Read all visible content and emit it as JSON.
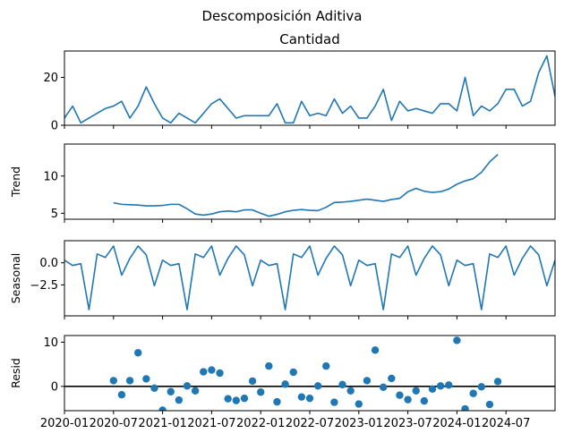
{
  "figure": {
    "suptitle": "Descomposición Aditiva"
  },
  "chart_data": [
    {
      "type": "line",
      "title": "Cantidad",
      "ylabel": "",
      "ylim": [
        0,
        31
      ],
      "yticks": [
        {
          "v": 0,
          "label": "0"
        },
        {
          "v": 20,
          "label": "20"
        }
      ],
      "series": [
        {
          "values": [
            3,
            8,
            1,
            3,
            5,
            7,
            8,
            10,
            3,
            8,
            16,
            9,
            3,
            1,
            5,
            3,
            1,
            5,
            9,
            11,
            7,
            3,
            4,
            4,
            4,
            4,
            9,
            1,
            1,
            10,
            4,
            5,
            4,
            11,
            5,
            8,
            3,
            3,
            8,
            15,
            2,
            10,
            6,
            7,
            6,
            5,
            9,
            9,
            6,
            20,
            4,
            8,
            6,
            9,
            15,
            15,
            8,
            10,
            22,
            29,
            12
          ]
        }
      ]
    },
    {
      "type": "line",
      "title": "",
      "ylabel": "Trend",
      "ylim": [
        4.2,
        14.3
      ],
      "yticks": [
        {
          "v": 5,
          "label": "5"
        },
        {
          "v": 10,
          "label": "10"
        }
      ],
      "series": [
        {
          "start_index": 6,
          "values": [
            6.4,
            6.2,
            6.15,
            6.1,
            6.0,
            6.0,
            6.05,
            6.2,
            6.2,
            5.6,
            4.9,
            4.75,
            4.9,
            5.2,
            5.3,
            5.2,
            5.45,
            5.45,
            5.0,
            4.6,
            4.85,
            5.2,
            5.4,
            5.5,
            5.4,
            5.35,
            5.8,
            6.45,
            6.5,
            6.6,
            6.75,
            6.9,
            6.75,
            6.6,
            6.85,
            7.0,
            7.9,
            8.35,
            7.95,
            7.8,
            7.9,
            8.25,
            8.9,
            9.35,
            9.65,
            10.5,
            11.9,
            12.9
          ]
        }
      ]
    },
    {
      "type": "line",
      "title": "",
      "ylabel": "Seasonal",
      "ylim": [
        -6.0,
        2.5
      ],
      "yticks": [
        {
          "v": -2.5,
          "label": "−2.5"
        },
        {
          "v": 0,
          "label": "0.0"
        }
      ],
      "series": [
        {
          "values": [
            0.3,
            -0.3,
            -0.1,
            -5.3,
            1.0,
            0.6,
            1.9,
            -1.4,
            0.5,
            1.9,
            0.9,
            -2.6,
            0.3,
            -0.3,
            -0.1,
            -5.3,
            1.0,
            0.6,
            1.9,
            -1.4,
            0.5,
            1.9,
            0.9,
            -2.6,
            0.3,
            -0.3,
            -0.1,
            -5.3,
            1.0,
            0.6,
            1.9,
            -1.4,
            0.5,
            1.9,
            0.9,
            -2.6,
            0.3,
            -0.3,
            -0.1,
            -5.3,
            1.0,
            0.6,
            1.9,
            -1.4,
            0.5,
            1.9,
            0.9,
            -2.6,
            0.3,
            -0.3,
            -0.1,
            -5.3,
            1.0,
            0.6,
            1.9,
            -1.4,
            0.5,
            1.9,
            0.9,
            -2.6,
            0.3
          ]
        }
      ]
    },
    {
      "type": "scatter",
      "title": "",
      "ylabel": "Resid",
      "ylim": [
        -5.5,
        11.5
      ],
      "yticks": [
        {
          "v": 0,
          "label": "0"
        },
        {
          "v": 10,
          "label": "10"
        }
      ],
      "zero_line": true,
      "series": [
        {
          "start_index": 6,
          "values": [
            1.3,
            -1.9,
            1.3,
            7.6,
            1.7,
            -0.4,
            -5.4,
            -1.2,
            -3.1,
            0.1,
            -1.0,
            3.3,
            3.7,
            3.0,
            -2.8,
            -3.2,
            -2.7,
            1.2,
            -1.3,
            4.6,
            -3.5,
            0.5,
            3.2,
            -2.4,
            -2.7,
            0.1,
            4.6,
            -3.6,
            0.4,
            -1.0,
            -4.0,
            1.3,
            8.2,
            -0.2,
            1.8,
            -2.0,
            -3.0,
            -1.0,
            -3.3,
            -0.6,
            0.1,
            0.3,
            10.4,
            -5.1,
            -1.6,
            -0.1,
            -4.1,
            1.1
          ]
        }
      ]
    }
  ],
  "x_axis": {
    "start": "2020-01",
    "frequency": "monthly",
    "tick_labels": [
      {
        "index": 0,
        "label": "2020-01"
      },
      {
        "index": 6,
        "label": "2020-07"
      },
      {
        "index": 12,
        "label": "2021-01"
      },
      {
        "index": 18,
        "label": "2021-07"
      },
      {
        "index": 24,
        "label": "2022-01"
      },
      {
        "index": 30,
        "label": "2022-07"
      },
      {
        "index": 36,
        "label": "2023-01"
      },
      {
        "index": 42,
        "label": "2023-07"
      },
      {
        "index": 48,
        "label": "2024-01"
      },
      {
        "index": 54,
        "label": "2024-07"
      }
    ]
  },
  "colors": {
    "line": "#1f77b4",
    "axes": "#000000",
    "zero_line": "#000000"
  }
}
